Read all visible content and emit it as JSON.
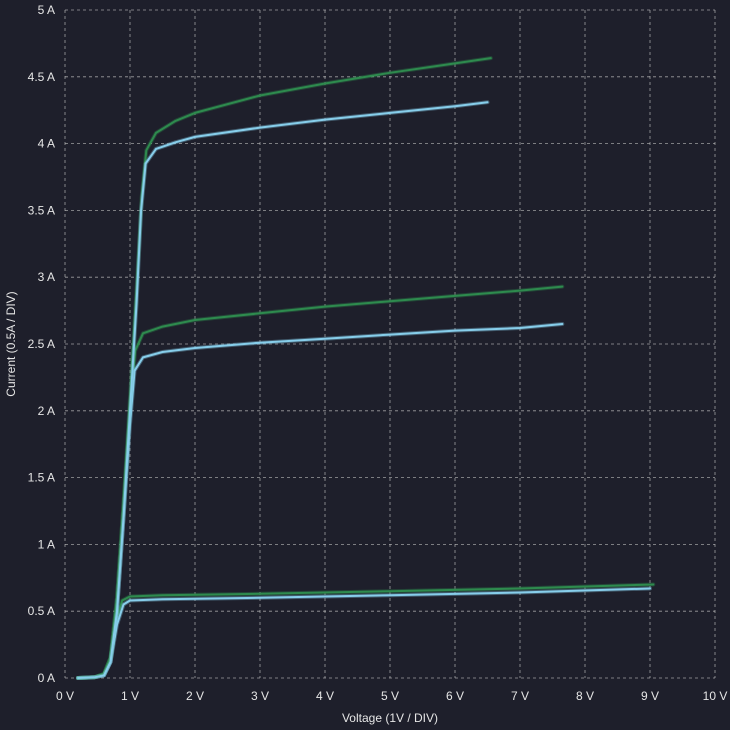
{
  "chart_data": {
    "type": "line",
    "title": "",
    "xlabel": "Voltage (1V / DIV)",
    "ylabel": "Current (0.5A / DIV)",
    "xlim": [
      0,
      10
    ],
    "ylim": [
      0,
      5
    ],
    "x_ticks": [
      0,
      1,
      2,
      3,
      4,
      5,
      6,
      7,
      8,
      9,
      10
    ],
    "x_tick_labels": [
      "0 V",
      "1 V",
      "2 V",
      "3 V",
      "4 V",
      "5 V",
      "6 V",
      "7 V",
      "8 V",
      "9 V",
      "10 V"
    ],
    "y_ticks": [
      0,
      0.5,
      1,
      1.5,
      2,
      2.5,
      3,
      3.5,
      4,
      4.5,
      5
    ],
    "y_tick_labels": [
      "0 A",
      "0.5 A",
      "1 A",
      "1.5 A",
      "2 A",
      "2.5 A",
      "3 A",
      "3.5 A",
      "4 A",
      "4.5 A",
      "5 A"
    ],
    "grid": true,
    "background": "#1e1f2b",
    "series": [
      {
        "color": "#2e8b4e",
        "points": [
          [
            0.2,
            0
          ],
          [
            0.45,
            0.005
          ],
          [
            0.6,
            0.03
          ],
          [
            0.7,
            0.15
          ],
          [
            0.8,
            0.45
          ],
          [
            0.88,
            0.58
          ],
          [
            1.0,
            0.61
          ],
          [
            1.5,
            0.62
          ],
          [
            3,
            0.63
          ],
          [
            5,
            0.65
          ],
          [
            7,
            0.67
          ],
          [
            9.05,
            0.7
          ]
        ]
      },
      {
        "color": "#87ceeb",
        "points": [
          [
            0.2,
            0
          ],
          [
            0.45,
            0.005
          ],
          [
            0.6,
            0.02
          ],
          [
            0.7,
            0.12
          ],
          [
            0.8,
            0.4
          ],
          [
            0.9,
            0.55
          ],
          [
            1.0,
            0.58
          ],
          [
            1.5,
            0.59
          ],
          [
            3,
            0.6
          ],
          [
            5,
            0.62
          ],
          [
            7,
            0.64
          ],
          [
            9.0,
            0.67
          ]
        ]
      },
      {
        "color": "#2e8b4e",
        "points": [
          [
            0.2,
            0
          ],
          [
            0.45,
            0.005
          ],
          [
            0.6,
            0.03
          ],
          [
            0.7,
            0.15
          ],
          [
            0.8,
            0.6
          ],
          [
            0.9,
            1.3
          ],
          [
            1.0,
            2.0
          ],
          [
            1.08,
            2.45
          ],
          [
            1.2,
            2.58
          ],
          [
            1.5,
            2.63
          ],
          [
            2,
            2.68
          ],
          [
            3,
            2.73
          ],
          [
            4,
            2.78
          ],
          [
            5,
            2.82
          ],
          [
            6,
            2.86
          ],
          [
            7,
            2.9
          ],
          [
            7.65,
            2.93
          ]
        ]
      },
      {
        "color": "#87ceeb",
        "points": [
          [
            0.2,
            0
          ],
          [
            0.45,
            0.005
          ],
          [
            0.6,
            0.02
          ],
          [
            0.7,
            0.12
          ],
          [
            0.8,
            0.5
          ],
          [
            0.9,
            1.2
          ],
          [
            1.0,
            1.9
          ],
          [
            1.07,
            2.3
          ],
          [
            1.2,
            2.4
          ],
          [
            1.5,
            2.44
          ],
          [
            2,
            2.47
          ],
          [
            3,
            2.51
          ],
          [
            4,
            2.54
          ],
          [
            5,
            2.57
          ],
          [
            6,
            2.6
          ],
          [
            7,
            2.62
          ],
          [
            7.65,
            2.65
          ]
        ]
      },
      {
        "color": "#2e8b4e",
        "points": [
          [
            0.2,
            0
          ],
          [
            0.45,
            0.005
          ],
          [
            0.6,
            0.03
          ],
          [
            0.7,
            0.15
          ],
          [
            0.8,
            0.6
          ],
          [
            0.9,
            1.3
          ],
          [
            1.0,
            2.1
          ],
          [
            1.1,
            2.9
          ],
          [
            1.18,
            3.6
          ],
          [
            1.25,
            3.95
          ],
          [
            1.4,
            4.08
          ],
          [
            1.7,
            4.17
          ],
          [
            2,
            4.23
          ],
          [
            3,
            4.36
          ],
          [
            4,
            4.45
          ],
          [
            5,
            4.53
          ],
          [
            6,
            4.6
          ],
          [
            6.55,
            4.64
          ]
        ]
      },
      {
        "color": "#87ceeb",
        "points": [
          [
            0.2,
            0
          ],
          [
            0.45,
            0.005
          ],
          [
            0.6,
            0.02
          ],
          [
            0.7,
            0.12
          ],
          [
            0.8,
            0.5
          ],
          [
            0.9,
            1.2
          ],
          [
            1.0,
            2.0
          ],
          [
            1.1,
            2.8
          ],
          [
            1.17,
            3.5
          ],
          [
            1.24,
            3.85
          ],
          [
            1.4,
            3.96
          ],
          [
            1.7,
            4.01
          ],
          [
            2,
            4.05
          ],
          [
            3,
            4.12
          ],
          [
            4,
            4.18
          ],
          [
            5,
            4.23
          ],
          [
            6,
            4.28
          ],
          [
            6.5,
            4.31
          ]
        ]
      }
    ]
  }
}
